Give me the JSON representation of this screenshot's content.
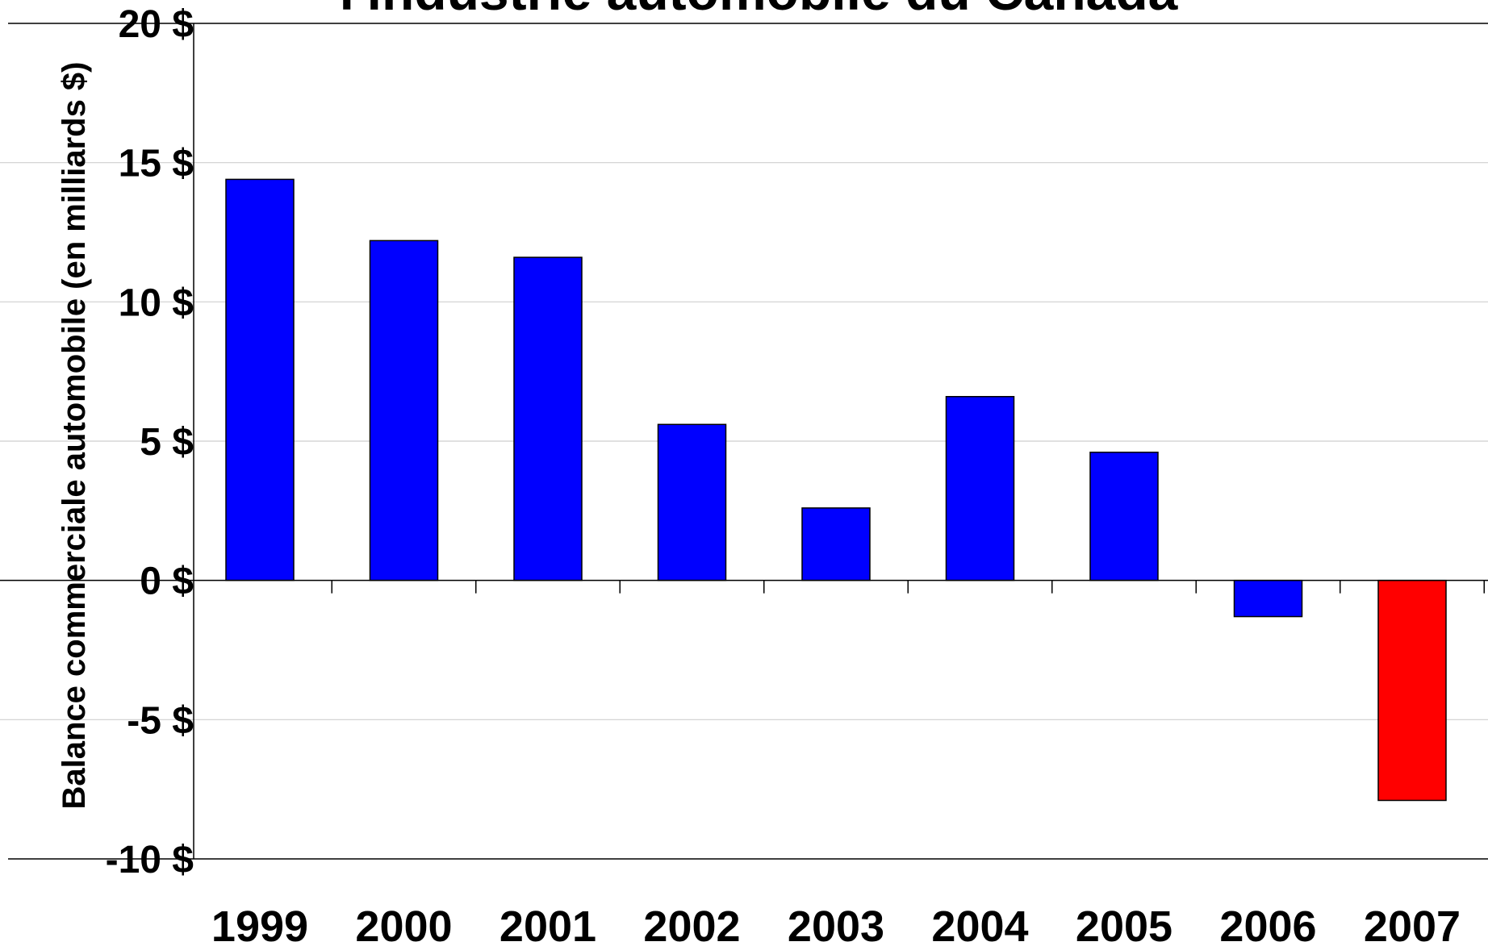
{
  "chart_data": {
    "type": "bar",
    "title": "l'industrie automobile du Canada",
    "ylabel": "Balance commerciale automobile (en milliards $)",
    "xlabel": "",
    "categories": [
      "1999",
      "2000",
      "2001",
      "2002",
      "2003",
      "2004",
      "2005",
      "2006",
      "2007"
    ],
    "values": [
      14.4,
      12.2,
      11.6,
      5.6,
      2.6,
      6.6,
      4.6,
      -1.3,
      -7.9
    ],
    "bar_colors": [
      "#0000ff",
      "#0000ff",
      "#0000ff",
      "#0000ff",
      "#0000ff",
      "#0000ff",
      "#0000ff",
      "#0000ff",
      "#ff0000"
    ],
    "ylim": [
      -10,
      20
    ],
    "yticks": [
      20,
      15,
      10,
      5,
      0,
      -5,
      -10
    ],
    "ytick_labels": [
      "20 $",
      "15 $",
      "10 $",
      "5 $",
      "0 $",
      "-5 $",
      "-10 $"
    ],
    "grid": true,
    "legend": "none"
  }
}
